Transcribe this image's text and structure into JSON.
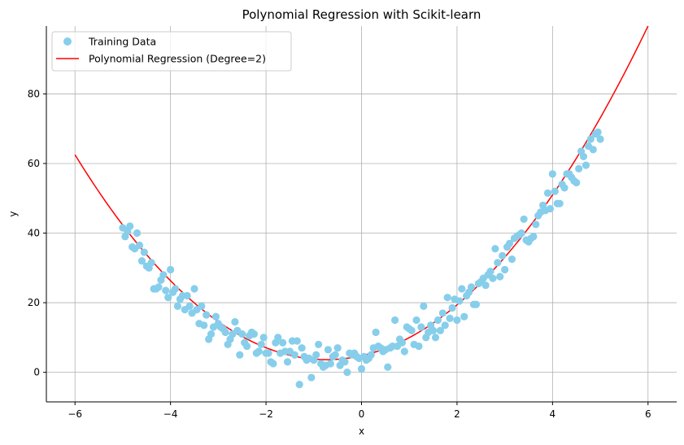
{
  "chart_data": {
    "type": "scatter",
    "title": "Polynomial Regression with Scikit-learn",
    "xlabel": "x",
    "ylabel": "y",
    "xlim": [
      -6.6,
      6.6
    ],
    "ylim": [
      -8.5,
      99.5
    ],
    "xticks": [
      -6,
      -4,
      -2,
      0,
      2,
      4,
      6
    ],
    "yticks": [
      0,
      20,
      40,
      60,
      80
    ],
    "xtick_labels": [
      "−6",
      "−4",
      "−2",
      "0",
      "2",
      "4",
      "6"
    ],
    "ytick_labels": [
      "0",
      "20",
      "40",
      "60",
      "80"
    ],
    "grid": true,
    "legend_position": "top-left",
    "colors": {
      "scatter": "#87ceeb",
      "line": "#ff0000",
      "grid": "#b0b0b0",
      "axis": "#000000"
    },
    "series": [
      {
        "name": "Training Data",
        "kind": "scatter",
        "points": [
          [
            -5.0,
            41.5
          ],
          [
            -4.95,
            39.0
          ],
          [
            -4.9,
            40.5
          ],
          [
            -4.85,
            42.0
          ],
          [
            -4.8,
            36.0
          ],
          [
            -4.75,
            35.5
          ],
          [
            -4.7,
            40.0
          ],
          [
            -4.65,
            36.5
          ],
          [
            -4.6,
            32.0
          ],
          [
            -4.55,
            34.5
          ],
          [
            -4.5,
            30.5
          ],
          [
            -4.45,
            30.0
          ],
          [
            -4.4,
            31.5
          ],
          [
            -4.35,
            24.0
          ],
          [
            -4.3,
            24.0
          ],
          [
            -4.25,
            24.5
          ],
          [
            -4.2,
            26.5
          ],
          [
            -4.15,
            28.0
          ],
          [
            -4.1,
            23.5
          ],
          [
            -4.05,
            21.5
          ],
          [
            -4.0,
            29.5
          ],
          [
            -3.95,
            23.0
          ],
          [
            -3.9,
            24.0
          ],
          [
            -3.85,
            19.0
          ],
          [
            -3.8,
            21.0
          ],
          [
            -3.75,
            22.0
          ],
          [
            -3.7,
            18.0
          ],
          [
            -3.65,
            22.0
          ],
          [
            -3.6,
            19.0
          ],
          [
            -3.55,
            17.0
          ],
          [
            -3.5,
            24.0
          ],
          [
            -3.45,
            18.0
          ],
          [
            -3.4,
            14.0
          ],
          [
            -3.35,
            19.0
          ],
          [
            -3.3,
            13.5
          ],
          [
            -3.25,
            16.5
          ],
          [
            -3.2,
            9.5
          ],
          [
            -3.15,
            11.0
          ],
          [
            -3.1,
            13.0
          ],
          [
            -3.05,
            16.0
          ],
          [
            -3.0,
            14.0
          ],
          [
            -2.95,
            13.0
          ],
          [
            -2.9,
            12.5
          ],
          [
            -2.85,
            11.5
          ],
          [
            -2.8,
            8.0
          ],
          [
            -2.75,
            9.5
          ],
          [
            -2.7,
            11.0
          ],
          [
            -2.65,
            14.5
          ],
          [
            -2.6,
            12.0
          ],
          [
            -2.55,
            5.0
          ],
          [
            -2.5,
            11.0
          ],
          [
            -2.45,
            8.5
          ],
          [
            -2.4,
            7.5
          ],
          [
            -2.35,
            10.5
          ],
          [
            -2.3,
            11.5
          ],
          [
            -2.25,
            11.0
          ],
          [
            -2.2,
            5.5
          ],
          [
            -2.15,
            6.0
          ],
          [
            -2.1,
            8.0
          ],
          [
            -2.05,
            10.0
          ],
          [
            -2.0,
            5.5
          ],
          [
            -1.95,
            5.5
          ],
          [
            -1.9,
            3.0
          ],
          [
            -1.85,
            2.5
          ],
          [
            -1.8,
            8.5
          ],
          [
            -1.75,
            10.0
          ],
          [
            -1.7,
            5.5
          ],
          [
            -1.65,
            8.5
          ],
          [
            -1.6,
            6.0
          ],
          [
            -1.55,
            3.0
          ],
          [
            -1.5,
            6.0
          ],
          [
            -1.45,
            9.0
          ],
          [
            -1.4,
            5.0
          ],
          [
            -1.35,
            9.0
          ],
          [
            -1.3,
            -3.5
          ],
          [
            -1.25,
            7.0
          ],
          [
            -1.2,
            4.5
          ],
          [
            -1.15,
            3.5
          ],
          [
            -1.1,
            4.0
          ],
          [
            -1.05,
            -1.5
          ],
          [
            -1.0,
            3.5
          ],
          [
            -0.95,
            5.0
          ],
          [
            -0.9,
            8.0
          ],
          [
            -0.85,
            2.5
          ],
          [
            -0.8,
            1.5
          ],
          [
            -0.75,
            2.0
          ],
          [
            -0.7,
            6.5
          ],
          [
            -0.65,
            2.5
          ],
          [
            -0.6,
            4.5
          ],
          [
            -0.55,
            5.0
          ],
          [
            -0.5,
            7.0
          ],
          [
            -0.45,
            2.0
          ],
          [
            -0.4,
            3.5
          ],
          [
            -0.35,
            3.0
          ],
          [
            -0.3,
            0.0
          ],
          [
            -0.25,
            5.5
          ],
          [
            -0.2,
            5.0
          ],
          [
            -0.15,
            5.5
          ],
          [
            -0.1,
            4.5
          ],
          [
            -0.05,
            4.0
          ],
          [
            0.0,
            1.0
          ],
          [
            0.05,
            4.5
          ],
          [
            0.1,
            3.5
          ],
          [
            0.15,
            4.0
          ],
          [
            0.2,
            5.0
          ],
          [
            0.25,
            7.0
          ],
          [
            0.3,
            11.5
          ],
          [
            0.35,
            7.5
          ],
          [
            0.4,
            7.0
          ],
          [
            0.45,
            6.0
          ],
          [
            0.5,
            6.5
          ],
          [
            0.55,
            1.5
          ],
          [
            0.6,
            7.0
          ],
          [
            0.65,
            7.5
          ],
          [
            0.7,
            15.0
          ],
          [
            0.75,
            7.5
          ],
          [
            0.8,
            9.5
          ],
          [
            0.85,
            8.5
          ],
          [
            0.9,
            6.0
          ],
          [
            0.95,
            13.0
          ],
          [
            1.0,
            12.5
          ],
          [
            1.05,
            12.0
          ],
          [
            1.1,
            8.0
          ],
          [
            1.15,
            15.0
          ],
          [
            1.2,
            7.5
          ],
          [
            1.25,
            13.0
          ],
          [
            1.3,
            19.0
          ],
          [
            1.35,
            10.0
          ],
          [
            1.4,
            11.5
          ],
          [
            1.45,
            13.5
          ],
          [
            1.5,
            12.0
          ],
          [
            1.55,
            10.0
          ],
          [
            1.6,
            15.0
          ],
          [
            1.65,
            12.0
          ],
          [
            1.7,
            17.0
          ],
          [
            1.75,
            13.5
          ],
          [
            1.8,
            21.5
          ],
          [
            1.85,
            15.5
          ],
          [
            1.9,
            18.5
          ],
          [
            1.95,
            21.0
          ],
          [
            2.0,
            15.0
          ],
          [
            2.05,
            20.5
          ],
          [
            2.1,
            24.0
          ],
          [
            2.15,
            16.0
          ],
          [
            2.2,
            22.0
          ],
          [
            2.25,
            23.0
          ],
          [
            2.3,
            24.5
          ],
          [
            2.35,
            19.5
          ],
          [
            2.4,
            19.5
          ],
          [
            2.45,
            25.5
          ],
          [
            2.5,
            26.0
          ],
          [
            2.55,
            27.0
          ],
          [
            2.6,
            25.0
          ],
          [
            2.65,
            28.0
          ],
          [
            2.7,
            29.0
          ],
          [
            2.75,
            27.0
          ],
          [
            2.8,
            35.5
          ],
          [
            2.85,
            31.5
          ],
          [
            2.9,
            27.5
          ],
          [
            2.95,
            33.5
          ],
          [
            3.0,
            29.5
          ],
          [
            3.05,
            36.0
          ],
          [
            3.1,
            37.0
          ],
          [
            3.15,
            32.5
          ],
          [
            3.2,
            38.5
          ],
          [
            3.25,
            39.0
          ],
          [
            3.3,
            39.5
          ],
          [
            3.35,
            40.0
          ],
          [
            3.4,
            44.0
          ],
          [
            3.45,
            38.0
          ],
          [
            3.5,
            37.5
          ],
          [
            3.55,
            38.5
          ],
          [
            3.6,
            39.0
          ],
          [
            3.65,
            42.5
          ],
          [
            3.7,
            45.0
          ],
          [
            3.75,
            46.0
          ],
          [
            3.8,
            48.0
          ],
          [
            3.85,
            46.5
          ],
          [
            3.9,
            51.5
          ],
          [
            3.95,
            47.0
          ],
          [
            4.0,
            57.0
          ],
          [
            4.05,
            52.0
          ],
          [
            4.1,
            48.5
          ],
          [
            4.15,
            48.5
          ],
          [
            4.2,
            54.0
          ],
          [
            4.25,
            53.0
          ],
          [
            4.3,
            57.0
          ],
          [
            4.35,
            57.0
          ],
          [
            4.4,
            56.0
          ],
          [
            4.45,
            55.0
          ],
          [
            4.5,
            54.5
          ],
          [
            4.55,
            58.5
          ],
          [
            4.6,
            63.5
          ],
          [
            4.65,
            62.0
          ],
          [
            4.7,
            59.5
          ],
          [
            4.75,
            65.0
          ],
          [
            4.8,
            67.0
          ],
          [
            4.85,
            64.0
          ],
          [
            4.9,
            68.5
          ],
          [
            4.95,
            69.0
          ],
          [
            5.0,
            67.0
          ]
        ]
      },
      {
        "name": "Polynomial Regression (Degree=2)",
        "kind": "line",
        "degree": 2,
        "coefficients": {
          "a": 2.118,
          "b": 3.083,
          "c": 4.76
        },
        "x_range": [
          -6,
          6
        ]
      }
    ]
  }
}
